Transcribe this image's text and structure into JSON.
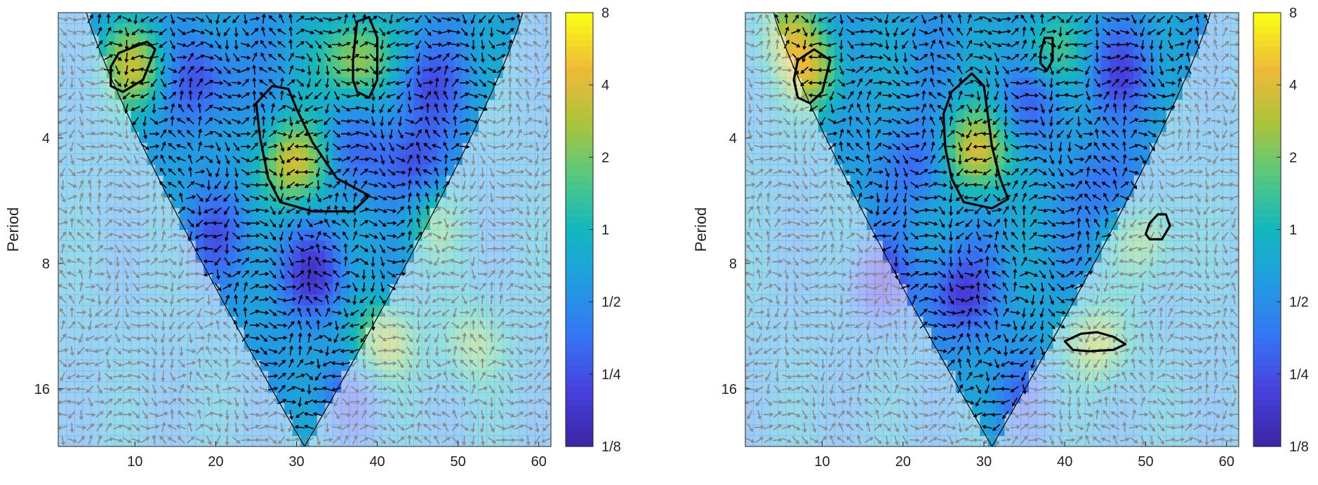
{
  "chart_data": [
    {
      "type": "heatmap",
      "title": "",
      "xlabel": "",
      "ylabel": "Period",
      "xlim": [
        0.5,
        61.5
      ],
      "ylim": [
        2,
        22
      ],
      "y_scale": "log2",
      "y_reversed": true,
      "xticks": [
        10,
        20,
        30,
        40,
        50,
        60
      ],
      "xtick_labels": [
        "10",
        "20",
        "30",
        "40",
        "50",
        "60"
      ],
      "yticks": [
        4,
        8,
        16
      ],
      "ytick_labels": [
        "4",
        "8",
        "16"
      ],
      "colorbar": {
        "scale": "log2",
        "range": [
          0.125,
          8
        ],
        "ticks": [
          0.125,
          0.25,
          0.5,
          1,
          2,
          4,
          8
        ],
        "tick_labels": [
          "1/8",
          "1/4",
          "1/2",
          "1",
          "2",
          "4",
          "8"
        ],
        "colormap": "parula"
      },
      "cone_of_influence": {
        "apex_time": 31,
        "apex_period": 22,
        "edge_at_top": [
          4,
          58
        ]
      },
      "hotspots": [
        {
          "t": 10,
          "p": 2.7,
          "power": 3.0
        },
        {
          "t": 37.5,
          "p": 2.6,
          "power": 3.0
        },
        {
          "t": 30,
          "p": 4.6,
          "power": 4.0
        },
        {
          "t": 41,
          "p": 12.5,
          "power": 2.8
        },
        {
          "t": 52,
          "p": 12.5,
          "power": 2.0
        },
        {
          "t": 47,
          "p": 6.5,
          "power": 1.5
        }
      ],
      "coldspots": [
        {
          "t": 18,
          "p": 2.9,
          "power": 0.22
        },
        {
          "t": 32,
          "p": 8.5,
          "power": 0.2
        },
        {
          "t": 46,
          "p": 3.0,
          "power": 0.25
        },
        {
          "t": 45,
          "p": 4.6,
          "power": 0.25
        },
        {
          "t": 20,
          "p": 6.8,
          "power": 0.3
        },
        {
          "t": 37,
          "p": 4.4,
          "power": 0.3
        },
        {
          "t": 37,
          "p": 17,
          "power": 0.3
        }
      ],
      "significant_regions": [
        {
          "points": [
            [
              7,
              2.7
            ],
            [
              8,
              2.5
            ],
            [
              11.5,
              2.35
            ],
            [
              12.5,
              2.45
            ],
            [
              11,
              2.9
            ],
            [
              8.5,
              3.1
            ],
            [
              7,
              3.0
            ]
          ]
        },
        {
          "points": [
            [
              37,
              2.6
            ],
            [
              37.5,
              2.1
            ],
            [
              39,
              2.05
            ],
            [
              40,
              2.3
            ],
            [
              40,
              2.9
            ],
            [
              39,
              3.2
            ],
            [
              37.5,
              3.1
            ],
            [
              37,
              2.9
            ]
          ]
        },
        {
          "points": [
            [
              25,
              3.3
            ],
            [
              27,
              3.0
            ],
            [
              29,
              3.05
            ],
            [
              30,
              3.4
            ],
            [
              32,
              4.1
            ],
            [
              35,
              5.0
            ],
            [
              39,
              5.5
            ],
            [
              37,
              6.0
            ],
            [
              32,
              6.0
            ],
            [
              28,
              5.7
            ],
            [
              26.5,
              5.0
            ],
            [
              25.5,
              4.0
            ]
          ]
        }
      ]
    },
    {
      "type": "heatmap",
      "title": "",
      "xlabel": "",
      "ylabel": "Period",
      "xlim": [
        0.5,
        61.5
      ],
      "ylim": [
        2,
        22
      ],
      "y_scale": "log2",
      "y_reversed": true,
      "xticks": [
        10,
        20,
        30,
        40,
        50,
        60
      ],
      "xtick_labels": [
        "10",
        "20",
        "30",
        "40",
        "50",
        "60"
      ],
      "yticks": [
        4,
        8,
        16
      ],
      "ytick_labels": [
        "4",
        "8",
        "16"
      ],
      "colorbar": {
        "scale": "log2",
        "range": [
          0.125,
          8
        ],
        "ticks": [
          0.125,
          0.25,
          0.5,
          1,
          2,
          4,
          8
        ],
        "tick_labels": [
          "1/8",
          "1/4",
          "1/2",
          "1",
          "2",
          "4",
          "8"
        ],
        "colormap": "parula"
      },
      "cone_of_influence": {
        "apex_time": 31,
        "apex_period": 22,
        "edge_at_top": [
          4,
          58
        ]
      },
      "hotspots": [
        {
          "t": 8.5,
          "p": 2.8,
          "power": 2.8
        },
        {
          "t": 29,
          "p": 4.3,
          "power": 4.0
        },
        {
          "t": 44,
          "p": 12.5,
          "power": 2.8
        },
        {
          "t": 50,
          "p": 7.0,
          "power": 2.0
        },
        {
          "t": 5.5,
          "p": 2.2,
          "power": 2.0
        },
        {
          "t": 38,
          "p": 2.5,
          "power": 1.5
        }
      ],
      "coldspots": [
        {
          "t": 27,
          "p": 9.5,
          "power": 0.2
        },
        {
          "t": 17,
          "p": 9.0,
          "power": 0.22
        },
        {
          "t": 47,
          "p": 2.8,
          "power": 0.25
        },
        {
          "t": 36,
          "p": 3.2,
          "power": 0.3
        },
        {
          "t": 22,
          "p": 4.6,
          "power": 0.3
        },
        {
          "t": 46,
          "p": 5.3,
          "power": 0.3
        },
        {
          "t": 35,
          "p": 17,
          "power": 0.35
        }
      ],
      "significant_regions": [
        {
          "points": [
            [
              6.5,
              2.9
            ],
            [
              7,
              2.6
            ],
            [
              9,
              2.45
            ],
            [
              11,
              2.6
            ],
            [
              10,
              3.1
            ],
            [
              8.5,
              3.3
            ],
            [
              7,
              3.2
            ]
          ]
        },
        {
          "points": [
            [
              37,
              2.5
            ],
            [
              37.5,
              2.3
            ],
            [
              38.5,
              2.3
            ],
            [
              38.5,
              2.6
            ],
            [
              37.8,
              2.75
            ],
            [
              37,
              2.65
            ]
          ]
        },
        {
          "points": [
            [
              25,
              3.5
            ],
            [
              26,
              3.1
            ],
            [
              28.5,
              2.8
            ],
            [
              30,
              3.0
            ],
            [
              31,
              4.2
            ],
            [
              32,
              5.0
            ],
            [
              33,
              5.6
            ],
            [
              31,
              5.9
            ],
            [
              27.5,
              5.7
            ],
            [
              26,
              5.0
            ],
            [
              25.2,
              4.2
            ]
          ]
        },
        {
          "points": [
            [
              50,
              6.8
            ],
            [
              50.5,
              6.4
            ],
            [
              51.5,
              6.1
            ],
            [
              52.5,
              6.1
            ],
            [
              53,
              6.5
            ],
            [
              52,
              7.0
            ],
            [
              50.5,
              7.0
            ]
          ]
        },
        {
          "points": [
            [
              40,
              12.3
            ],
            [
              42,
              11.8
            ],
            [
              44,
              11.7
            ],
            [
              46,
              12.0
            ],
            [
              47.5,
              12.5
            ],
            [
              46,
              12.9
            ],
            [
              43,
              13.0
            ],
            [
              41,
              12.9
            ]
          ]
        }
      ]
    }
  ]
}
